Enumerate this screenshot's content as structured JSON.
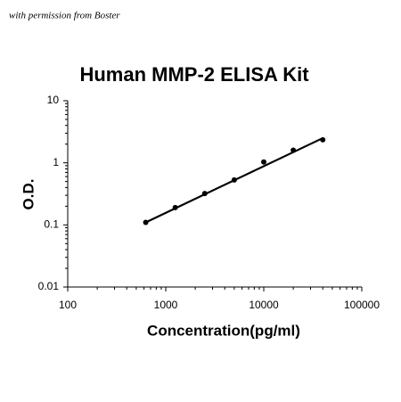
{
  "note": "with permission from Boster",
  "chart_data": {
    "type": "scatter",
    "title": "Human MMP-2 ELISA Kit",
    "x_label": "Concentration(pg/ml)",
    "y_label": "O.D.",
    "log_x": true,
    "log_y": true,
    "minor_ticks": true,
    "xlim": [
      100,
      100000
    ],
    "xticks": [
      100,
      1000,
      10000,
      100000
    ],
    "ylim": [
      0.01,
      10
    ],
    "yticks": [
      0.01,
      0.1,
      1,
      10
    ],
    "series": [
      {
        "color": "#000000",
        "x": [
          625,
          1250,
          2500,
          5000,
          10000,
          20000,
          40000
        ],
        "values": [
          0.11,
          0.19,
          0.32,
          0.53,
          1.03,
          1.6,
          2.35
        ]
      },
      {
        "color": "#000000",
        "line": true,
        "x": [
          625,
          40000
        ],
        "values": [
          0.11,
          2.5
        ]
      }
    ]
  }
}
